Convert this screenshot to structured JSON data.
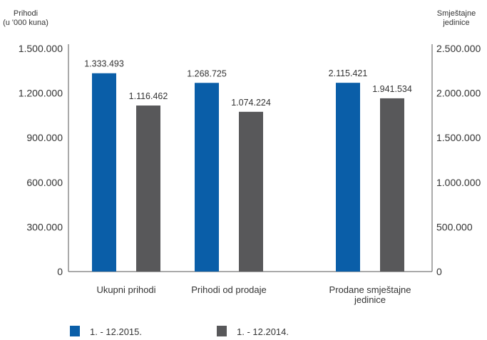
{
  "chart_data": {
    "type": "bar",
    "y_left_title": [
      "Prihodi",
      "(u '000 kuna)"
    ],
    "y_right_title": [
      "Smještajne",
      "jedinice"
    ],
    "y_left_lim": [
      0,
      1500000
    ],
    "y_left_ticks": [
      0,
      300000,
      600000,
      900000,
      1200000,
      1500000
    ],
    "y_left_tick_labels": [
      "0",
      "300.000",
      "600.000",
      "900.000",
      "1.200.000",
      "1.500.000"
    ],
    "y_right_lim": [
      0,
      2500000
    ],
    "y_right_ticks": [
      0,
      500000,
      1000000,
      1500000,
      2000000,
      2500000
    ],
    "y_right_tick_labels": [
      "0",
      "500.000",
      "1.000.000",
      "1.500.000",
      "2.000.000",
      "2.500.000"
    ],
    "categories": [
      {
        "label": [
          "Ukupni prihodi"
        ],
        "axis": "left"
      },
      {
        "label": [
          "Prihodi od prodaje"
        ],
        "axis": "left"
      },
      {
        "label": [
          "Prodane smještajne",
          "jedinice"
        ],
        "axis": "right"
      }
    ],
    "series": [
      {
        "name": "1. - 12.2015.",
        "color": "#0a5ea8",
        "values": [
          1333493,
          1268725,
          2115421
        ],
        "labels": [
          "1.333.493",
          "1.268.725",
          "2.115.421"
        ]
      },
      {
        "name": "1. - 12.2014.",
        "color": "#58585a",
        "values": [
          1116462,
          1074224,
          1941534
        ],
        "labels": [
          "1.116.462",
          "1.074.224",
          "1.941.534"
        ]
      }
    ],
    "grid": false,
    "legend_position": "bottom-left"
  }
}
